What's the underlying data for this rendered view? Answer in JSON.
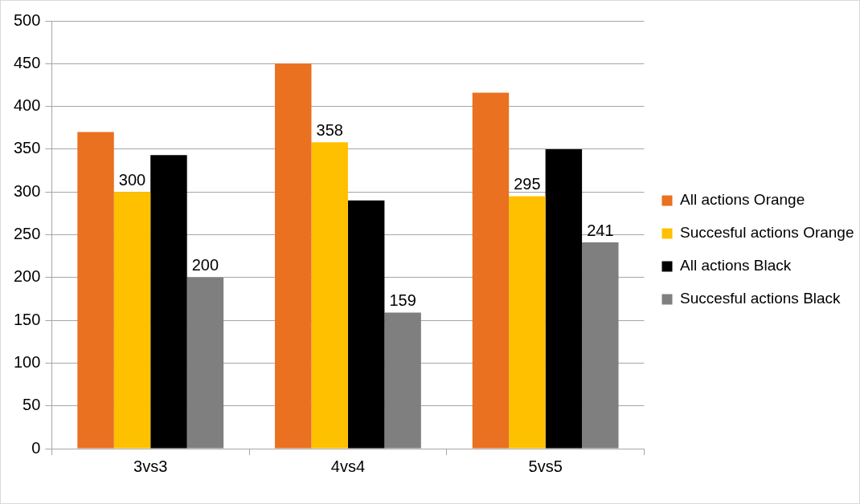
{
  "chart_data": {
    "type": "bar",
    "categories": [
      "3vs3",
      "4vs4",
      "5vs5"
    ],
    "series": [
      {
        "name": "All actions Orange",
        "color": "#e97120",
        "values": [
          370,
          450,
          416
        ]
      },
      {
        "name": "Succesful actions Orange",
        "color": "#ffc000",
        "values": [
          300,
          358,
          295
        ],
        "value_labels": [
          "300",
          "358",
          "295"
        ]
      },
      {
        "name": "All actions Black",
        "color": "#000000",
        "values": [
          343,
          290,
          350
        ]
      },
      {
        "name": "Succesful actions Black",
        "color": "#7f7f7f",
        "values": [
          200,
          159,
          241
        ],
        "value_labels": [
          "200",
          "159",
          "241"
        ]
      }
    ],
    "ylim": [
      0,
      500
    ],
    "yticks": [
      0,
      50,
      100,
      150,
      200,
      250,
      300,
      350,
      400,
      450,
      500
    ],
    "grid": "y",
    "legend": "right"
  }
}
